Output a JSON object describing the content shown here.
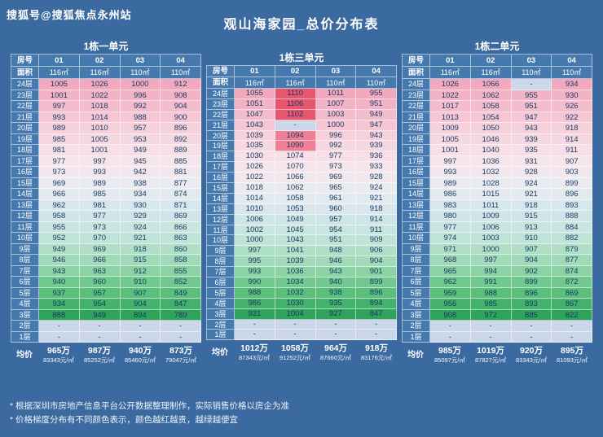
{
  "page": {
    "watermark": "搜狐号@搜狐焦点永州站",
    "title": "观山海家园_总价分布表",
    "bg_color": "#3b6aa0",
    "footnotes": [
      "* 根据深圳市房地产信息平台公开数据整理制作，实际销售价格以房企为准",
      "* 价格梯度分布有不同颜色表示，颜色越红越贵，越绿越便宜"
    ]
  },
  "labels": {
    "room_no": "房号",
    "area": "面积",
    "avg": "均价",
    "floor_suffix": "层",
    "dash": "-"
  },
  "heatmap_colors": {
    "high_pink": "#f2a9be",
    "mid_white": "#e9ecf2",
    "low_green": "#2fa35c",
    "max_red": "#e8566e",
    "dash_bg": "#ccd8e9",
    "cell_blue": "#4679ae"
  },
  "chart_data": [
    {
      "type": "table",
      "title": "1栋一单元",
      "room_headers": [
        "01",
        "02",
        "03",
        "04"
      ],
      "areas": [
        "116㎡",
        "116㎡",
        "110㎡",
        "110㎡"
      ],
      "floors": [
        24,
        23,
        22,
        21,
        20,
        19,
        18,
        17,
        16,
        15,
        14,
        13,
        12,
        11,
        10,
        9,
        8,
        7,
        6,
        5,
        4,
        3,
        2,
        1
      ],
      "prices": [
        [
          1005,
          1026,
          1000,
          912
        ],
        [
          1001,
          1022,
          996,
          908
        ],
        [
          997,
          1018,
          992,
          904
        ],
        [
          993,
          1014,
          988,
          900
        ],
        [
          989,
          1010,
          957,
          896
        ],
        [
          985,
          1005,
          953,
          892
        ],
        [
          981,
          1001,
          949,
          889
        ],
        [
          977,
          997,
          945,
          885
        ],
        [
          973,
          993,
          942,
          881
        ],
        [
          969,
          989,
          938,
          877
        ],
        [
          966,
          985,
          934,
          874
        ],
        [
          962,
          981,
          930,
          871
        ],
        [
          958,
          977,
          929,
          869
        ],
        [
          955,
          973,
          924,
          866
        ],
        [
          952,
          970,
          921,
          863
        ],
        [
          949,
          969,
          918,
          860
        ],
        [
          946,
          966,
          915,
          858
        ],
        [
          943,
          963,
          912,
          855
        ],
        [
          940,
          960,
          910,
          852
        ],
        [
          937,
          957,
          907,
          849
        ],
        [
          934,
          954,
          904,
          847
        ],
        [
          888,
          949,
          894,
          789
        ],
        [
          "-",
          "-",
          "-",
          "-"
        ],
        [
          "-",
          "-",
          "-",
          "-"
        ]
      ],
      "avg": [
        {
          "total": "965万",
          "unit": "83343元/㎡"
        },
        {
          "total": "987万",
          "unit": "85252元/㎡"
        },
        {
          "total": "940万",
          "unit": "85460元/㎡"
        },
        {
          "total": "873万",
          "unit": "79047元/㎡"
        }
      ]
    },
    {
      "type": "table",
      "title": "1栋三单元",
      "room_headers": [
        "01",
        "02",
        "03",
        "04"
      ],
      "areas": [
        "116㎡",
        "116㎡",
        "110㎡",
        "110㎡"
      ],
      "floors": [
        24,
        23,
        22,
        21,
        20,
        19,
        18,
        17,
        16,
        15,
        14,
        13,
        12,
        11,
        10,
        9,
        8,
        7,
        6,
        5,
        4,
        3,
        2,
        1
      ],
      "prices": [
        [
          1055,
          1110,
          1011,
          955
        ],
        [
          1051,
          1106,
          1007,
          951
        ],
        [
          1047,
          1102,
          1003,
          949
        ],
        [
          1043,
          "-",
          1000,
          947
        ],
        [
          1039,
          1094,
          996,
          943
        ],
        [
          1035,
          1090,
          992,
          939
        ],
        [
          1030,
          1074,
          977,
          936
        ],
        [
          1026,
          1070,
          973,
          933
        ],
        [
          1022,
          1066,
          969,
          928
        ],
        [
          1018,
          1062,
          965,
          924
        ],
        [
          1014,
          1058,
          961,
          921
        ],
        [
          1010,
          1053,
          960,
          918
        ],
        [
          1006,
          1049,
          957,
          914
        ],
        [
          1002,
          1045,
          954,
          911
        ],
        [
          1000,
          1043,
          951,
          909
        ],
        [
          997,
          1041,
          948,
          906
        ],
        [
          995,
          1039,
          946,
          904
        ],
        [
          993,
          1036,
          943,
          901
        ],
        [
          990,
          1034,
          940,
          899
        ],
        [
          988,
          1032,
          938,
          896
        ],
        [
          986,
          1030,
          935,
          894
        ],
        [
          931,
          1004,
          927,
          847
        ],
        [
          "-",
          "-",
          "-",
          "-"
        ],
        [
          "-",
          "-",
          "-",
          "-"
        ]
      ],
      "avg": [
        {
          "total": "1012万",
          "unit": "87343元/㎡"
        },
        {
          "total": "1058万",
          "unit": "91252元/㎡"
        },
        {
          "total": "964万",
          "unit": "87660元/㎡"
        },
        {
          "total": "918万",
          "unit": "83176元/㎡"
        }
      ]
    },
    {
      "type": "table",
      "title": "1栋二单元",
      "room_headers": [
        "01",
        "02",
        "03",
        "04"
      ],
      "areas": [
        "116㎡",
        "116㎡",
        "110㎡",
        "110㎡"
      ],
      "floors": [
        24,
        23,
        22,
        21,
        20,
        19,
        18,
        17,
        16,
        15,
        14,
        13,
        12,
        11,
        10,
        9,
        8,
        7,
        6,
        5,
        4,
        3,
        2,
        1
      ],
      "prices": [
        [
          1026,
          1066,
          "-",
          934
        ],
        [
          1022,
          1062,
          955,
          930
        ],
        [
          1017,
          1058,
          951,
          926
        ],
        [
          1013,
          1054,
          947,
          922
        ],
        [
          1009,
          1050,
          943,
          918
        ],
        [
          1005,
          1046,
          939,
          914
        ],
        [
          1001,
          1040,
          935,
          911
        ],
        [
          997,
          1036,
          931,
          907
        ],
        [
          993,
          1032,
          928,
          903
        ],
        [
          989,
          1028,
          924,
          899
        ],
        [
          986,
          1015,
          921,
          896
        ],
        [
          983,
          1011,
          918,
          893
        ],
        [
          980,
          1009,
          915,
          888
        ],
        [
          977,
          1006,
          913,
          884
        ],
        [
          974,
          1003,
          910,
          882
        ],
        [
          971,
          1000,
          907,
          879
        ],
        [
          968,
          997,
          904,
          877
        ],
        [
          965,
          994,
          902,
          874
        ],
        [
          962,
          991,
          899,
          872
        ],
        [
          959,
          988,
          896,
          869
        ],
        [
          956,
          985,
          893,
          867
        ],
        [
          908,
          972,
          885,
          822
        ],
        [
          "-",
          "-",
          "-",
          "-"
        ],
        [
          "-",
          "-",
          "-",
          "-"
        ]
      ],
      "avg": [
        {
          "total": "985万",
          "unit": "85097元/㎡"
        },
        {
          "total": "1019万",
          "unit": "87827元/㎡"
        },
        {
          "total": "920万",
          "unit": "83343元/㎡"
        },
        {
          "total": "895万",
          "unit": "81093元/㎡"
        }
      ]
    }
  ]
}
